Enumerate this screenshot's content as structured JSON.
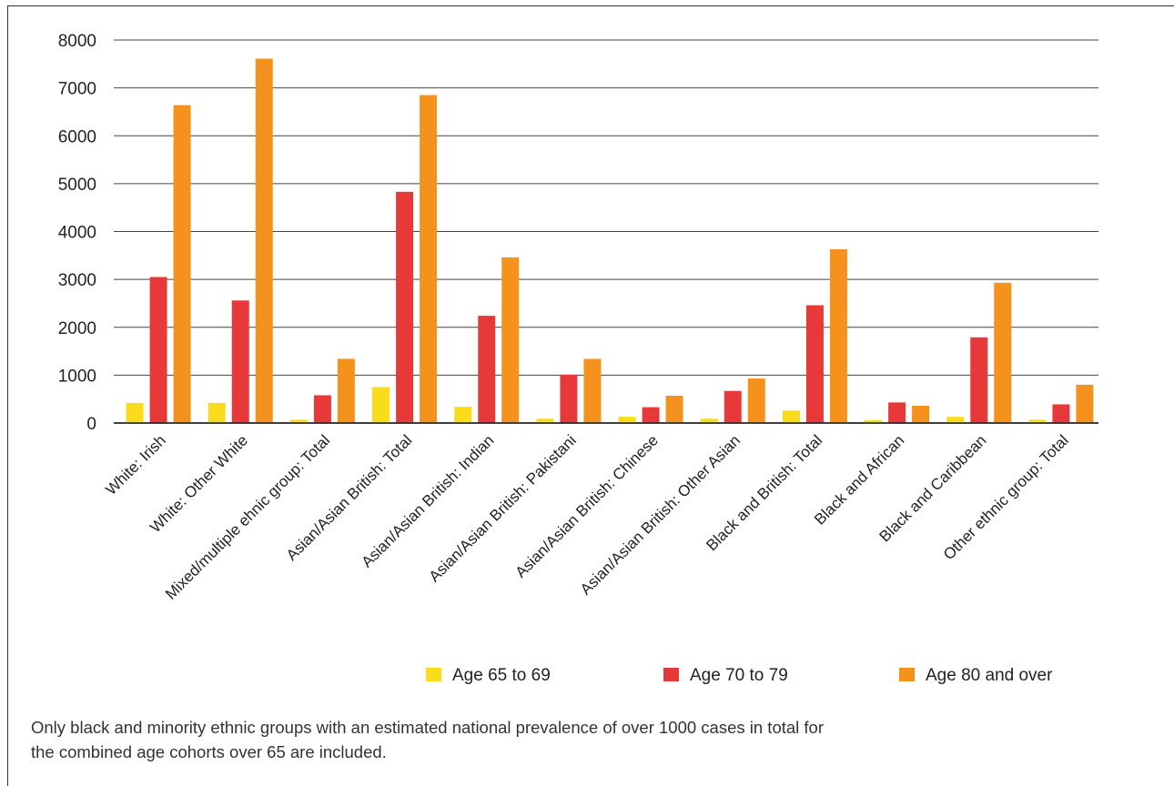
{
  "chart_data": {
    "type": "bar",
    "title": "",
    "xlabel": "",
    "ylabel": "",
    "ylim": [
      0,
      8000
    ],
    "yticks": [
      "8000",
      "7000",
      "6000",
      "5000",
      "4000",
      "3000",
      "2000",
      "1000",
      "0"
    ],
    "grid": true,
    "legend_position": "bottom-right",
    "categories": [
      "White: Irish",
      "White: Other White",
      "Mixed/multiple ehnic group: Total",
      "Asian/Asian British: Total",
      "Asian/Asian British: Indian",
      "Asian/Asian British: Pakistani",
      "Asian/Asian British: Chinese",
      "Asian/Asian British: Other Asian",
      "Black and British: Total",
      "Black and African",
      "Black and Caribbean",
      "Other ethnic group: Total"
    ],
    "series": [
      {
        "name": "Age 65 to 69",
        "color": "#f9dc1c",
        "values": [
          420,
          420,
          70,
          750,
          340,
          90,
          130,
          90,
          260,
          60,
          130,
          70
        ]
      },
      {
        "name": "Age 70 to 79",
        "color": "#e8393a",
        "values": [
          3050,
          2560,
          580,
          4830,
          2240,
          1010,
          330,
          670,
          2460,
          430,
          1790,
          390
        ]
      },
      {
        "name": "Age 80 and over",
        "color": "#f5921e",
        "values": [
          6640,
          7610,
          1340,
          6850,
          3460,
          1340,
          570,
          930,
          3630,
          360,
          2930,
          800
        ]
      }
    ]
  },
  "footnote": {
    "line1": "Only black and minority ethnic groups with an estimated national prevalence of over 1000 cases in total for",
    "line2": "the combined age cohorts over 65 are included."
  }
}
